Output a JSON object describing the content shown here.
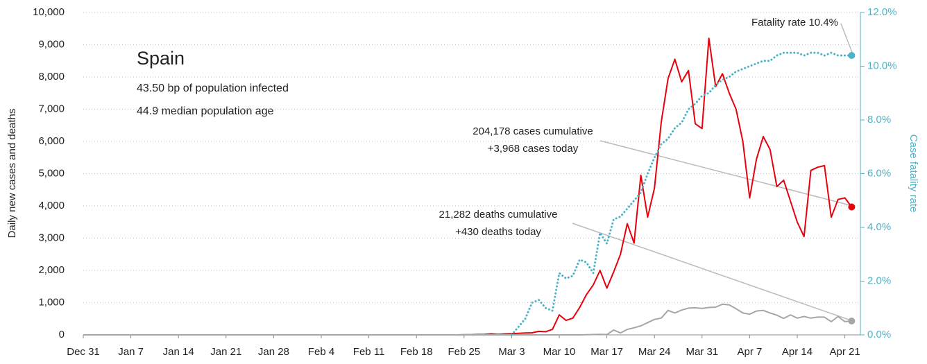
{
  "chart_data": {
    "type": "line",
    "title": "Spain",
    "subtitle": [
      "43.50 bp of population infected",
      "44.9 median population age"
    ],
    "ylabel": "Daily new cases and deaths",
    "y2label": "Case fatality rate",
    "annotations": [
      {
        "lines": [
          "Fatality rate 10.4%"
        ]
      },
      {
        "lines": [
          "204,178 cases cumulative",
          "+3,968 cases today"
        ]
      },
      {
        "lines": [
          "21,282 deaths cumulative",
          "+430 deaths today"
        ]
      }
    ],
    "categories": [
      "Dec 31",
      null,
      null,
      null,
      null,
      null,
      null,
      "Jan 7",
      null,
      null,
      null,
      null,
      null,
      null,
      "Jan 14",
      null,
      null,
      null,
      null,
      null,
      null,
      "Jan 21",
      null,
      null,
      null,
      null,
      null,
      null,
      "Jan 28",
      null,
      null,
      null,
      null,
      null,
      null,
      "Feb 4",
      null,
      null,
      null,
      null,
      null,
      null,
      "Feb 11",
      null,
      null,
      null,
      null,
      null,
      null,
      "Feb 18",
      null,
      null,
      null,
      null,
      null,
      null,
      "Feb 25",
      null,
      null,
      null,
      null,
      null,
      null,
      "Mar 3",
      null,
      null,
      null,
      null,
      null,
      null,
      "Mar 10",
      null,
      null,
      null,
      null,
      null,
      null,
      "Mar 17",
      null,
      null,
      null,
      null,
      null,
      null,
      "Mar 24",
      null,
      null,
      null,
      null,
      null,
      null,
      "Mar 31",
      null,
      null,
      null,
      null,
      null,
      null,
      "Apr 7",
      null,
      null,
      null,
      null,
      null,
      null,
      "Apr 14",
      null,
      null,
      null,
      null,
      null,
      null,
      "Apr 21",
      null
    ],
    "series": [
      {
        "name": "cases",
        "color": "#e8000b",
        "dash": false,
        "values": [
          0,
          0,
          0,
          0,
          0,
          0,
          0,
          0,
          0,
          0,
          0,
          0,
          0,
          0,
          0,
          0,
          0,
          0,
          0,
          0,
          0,
          0,
          0,
          0,
          0,
          0,
          0,
          0,
          0,
          0,
          0,
          0,
          0,
          0,
          0,
          0,
          0,
          0,
          0,
          0,
          0,
          0,
          0,
          0,
          0,
          0,
          0,
          0,
          0,
          0,
          0,
          0,
          0,
          0,
          0,
          0,
          4,
          7,
          13,
          15,
          32,
          17,
          31,
          37,
          50,
          60,
          65,
          110,
          100,
          170,
          620,
          450,
          520,
          850,
          1250,
          1550,
          2000,
          1450,
          1950,
          2500,
          3450,
          2850,
          4950,
          3650,
          4550,
          6600,
          7950,
          8550,
          7850,
          8200,
          6550,
          6400,
          9200,
          7700,
          8100,
          7500,
          7000,
          6000,
          4250,
          5450,
          6150,
          5750,
          4600,
          4800,
          4150,
          3500,
          3050,
          5100,
          5200,
          5250,
          3650,
          4200,
          4250,
          3968
        ]
      },
      {
        "name": "deaths",
        "color": "#a6a6a6",
        "dash": false,
        "values": [
          0,
          0,
          0,
          0,
          0,
          0,
          0,
          0,
          0,
          0,
          0,
          0,
          0,
          0,
          0,
          0,
          0,
          0,
          0,
          0,
          0,
          0,
          0,
          0,
          0,
          0,
          0,
          0,
          0,
          0,
          0,
          0,
          0,
          0,
          0,
          0,
          0,
          0,
          0,
          0,
          0,
          0,
          0,
          0,
          0,
          0,
          0,
          0,
          0,
          0,
          0,
          0,
          0,
          0,
          0,
          0,
          0,
          0,
          0,
          0,
          0,
          0,
          0,
          0,
          0,
          0,
          0,
          0,
          0,
          0,
          0,
          0,
          0,
          0,
          5,
          10,
          15,
          10,
          150,
          60,
          170,
          220,
          280,
          380,
          480,
          520,
          760,
          680,
          770,
          830,
          840,
          820,
          850,
          860,
          950,
          930,
          810,
          680,
          640,
          740,
          760,
          680,
          610,
          510,
          620,
          520,
          570,
          520,
          550,
          550,
          410,
          570,
          410,
          430
        ]
      },
      {
        "name": "fatality rate",
        "color": "#4bb3c8",
        "dash": true,
        "axis": "y2",
        "values": [
          null,
          null,
          null,
          null,
          null,
          null,
          null,
          null,
          null,
          null,
          null,
          null,
          null,
          null,
          null,
          null,
          null,
          null,
          null,
          null,
          null,
          null,
          null,
          null,
          null,
          null,
          null,
          null,
          null,
          null,
          null,
          null,
          null,
          null,
          null,
          null,
          null,
          null,
          null,
          null,
          null,
          null,
          null,
          null,
          null,
          null,
          null,
          null,
          null,
          null,
          null,
          null,
          null,
          null,
          null,
          null,
          null,
          null,
          null,
          null,
          null,
          null,
          null,
          0,
          0.3,
          0.6,
          1.2,
          1.3,
          1.0,
          0.9,
          2.3,
          2.1,
          2.2,
          2.8,
          2.7,
          2.3,
          3.8,
          3.4,
          4.3,
          4.4,
          4.7,
          5.0,
          5.3,
          6.0,
          6.6,
          7.1,
          7.3,
          7.7,
          7.9,
          8.4,
          8.6,
          8.9,
          9.0,
          9.3,
          9.5,
          9.6,
          9.8,
          9.9,
          10.0,
          10.1,
          10.2,
          10.2,
          10.4,
          10.5,
          10.5,
          10.5,
          10.4,
          10.5,
          10.5,
          10.4,
          10.5,
          10.4,
          10.4,
          10.4
        ]
      }
    ],
    "ylim": [
      0,
      10000
    ],
    "yticks": [
      0,
      {
        "value": 1000,
        "label": "1,000"
      },
      {
        "value": 2000,
        "label": "2,000"
      },
      {
        "value": 3000,
        "label": "3,000"
      },
      {
        "value": 4000,
        "label": "4,000"
      },
      {
        "value": 5000,
        "label": "5,000"
      },
      {
        "value": 6000,
        "label": "6,000"
      },
      {
        "value": 7000,
        "label": "7,000"
      },
      {
        "value": 8000,
        "label": "8,000"
      },
      {
        "value": 9000,
        "label": "9,000"
      },
      {
        "value": 10000,
        "label": "10,000"
      }
    ],
    "y2lim": [
      0,
      12
    ],
    "y2ticks": [
      {
        "value": 0,
        "label": "0.0%"
      },
      {
        "value": 2,
        "label": "2.0%"
      },
      {
        "value": 4,
        "label": "4.0%"
      },
      {
        "value": 6,
        "label": "6.0%"
      },
      {
        "value": 8,
        "label": "8.0%"
      },
      {
        "value": 10,
        "label": "10.0%"
      },
      {
        "value": 12,
        "label": "12.0%"
      }
    ],
    "grid": true
  }
}
